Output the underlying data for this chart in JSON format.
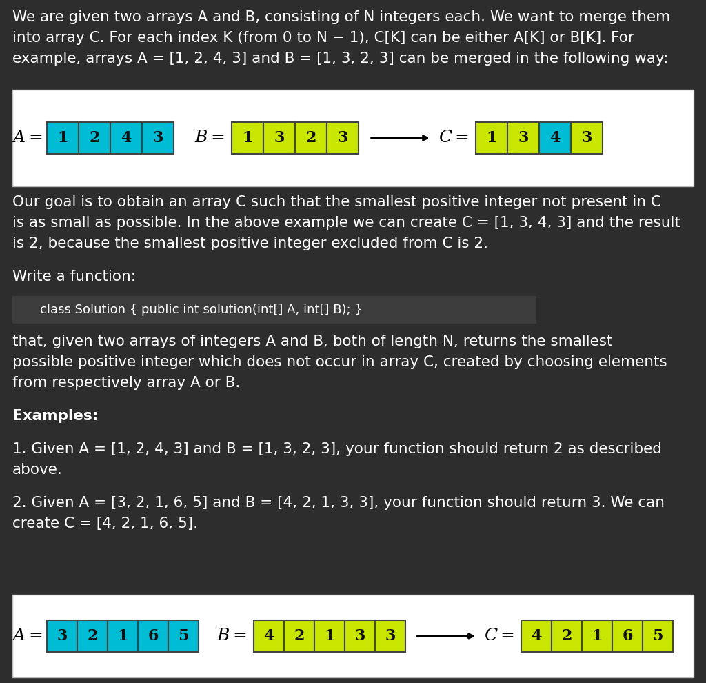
{
  "bg_color": "#2d2d2d",
  "white_box_color": "#ffffff",
  "text_color": "#ffffff",
  "dark_text_color": "#111111",
  "cyan_color": "#00bcd4",
  "lime_color": "#c8e600",
  "para1_line1": "We are given two arrays A and B, consisting of N integers each. We want to merge them",
  "para1_line2": "into array C. For each index K (from 0 to N − 1), C[K] can be either A[K] or B[K]. For",
  "para1_line3": "example, arrays A = [1, 2, 4, 3] and B = [1, 3, 2, 3] can be merged in the following way:",
  "para2_line1": "Our goal is to obtain an array C such that the smallest positive integer not present in C",
  "para2_line2": "is as small as possible. In the above example we can create C = [1, 3, 4, 3] and the result",
  "para2_line3": "is 2, because the smallest positive integer excluded from C is 2.",
  "para3": "Write a function:",
  "code_line": "    class Solution { public int solution(int[] A, int[] B); }",
  "para4_line1": "that, given two arrays of integers A and B, both of length N, returns the smallest",
  "para4_line2": "possible positive integer which does not occur in array C, created by choosing elements",
  "para4_line3": "from respectively array A or B.",
  "para5_bold": "Examples:",
  "para6_line1": "1. Given A = [1, 2, 4, 3] and B = [1, 3, 2, 3], your function should return 2 as described",
  "para6_line2": "above.",
  "para7_line1": "2. Given A = [3, 2, 1, 6, 5] and B = [4, 2, 1, 3, 3], your function should return 3. We can",
  "para7_line2": "create C = [4, 2, 1, 6, 5].",
  "array1_A": [
    1,
    2,
    4,
    3
  ],
  "array1_B": [
    1,
    3,
    2,
    3
  ],
  "array1_C": [
    1,
    3,
    4,
    3
  ],
  "array1_A_colors": [
    "#00bcd4",
    "#00bcd4",
    "#00bcd4",
    "#00bcd4"
  ],
  "array1_B_colors": [
    "#c8e600",
    "#c8e600",
    "#c8e600",
    "#c8e600"
  ],
  "array1_C_colors": [
    "#c8e600",
    "#c8e600",
    "#00bcd4",
    "#c8e600"
  ],
  "array2_A": [
    3,
    2,
    1,
    6,
    5
  ],
  "array2_B": [
    4,
    2,
    1,
    3,
    3
  ],
  "array2_C": [
    4,
    2,
    1,
    6,
    5
  ],
  "array2_A_colors": [
    "#00bcd4",
    "#00bcd4",
    "#00bcd4",
    "#00bcd4",
    "#00bcd4"
  ],
  "array2_B_colors": [
    "#c8e600",
    "#c8e600",
    "#c8e600",
    "#c8e600",
    "#c8e600"
  ],
  "array2_C_colors": [
    "#c8e600",
    "#c8e600",
    "#c8e600",
    "#c8e600",
    "#c8e600"
  ]
}
